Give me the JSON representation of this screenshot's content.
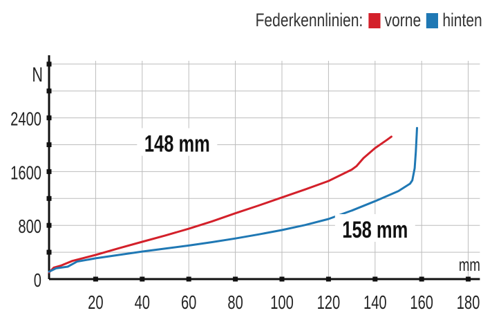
{
  "legend": {
    "title": "Federkennlinien:",
    "items": [
      {
        "label": "vorne",
        "color": "#d3202a"
      },
      {
        "label": "hinten",
        "color": "#1f78b4"
      }
    ]
  },
  "chart_data": {
    "type": "line",
    "xlabel": "mm",
    "ylabel": "N",
    "xlim": [
      0,
      185
    ],
    "ylim": [
      0,
      3250
    ],
    "x_ticks": [
      "20",
      "40",
      "60",
      "80",
      "100",
      "120",
      "140",
      "160",
      "180"
    ],
    "y_ticks": [
      "0",
      "800",
      "1600",
      "2400"
    ],
    "grid": true,
    "series": [
      {
        "name": "vorne",
        "color": "#d3202a",
        "points": [
          [
            0,
            100
          ],
          [
            2,
            170
          ],
          [
            5,
            200
          ],
          [
            10,
            270
          ],
          [
            20,
            360
          ],
          [
            30,
            460
          ],
          [
            40,
            555
          ],
          [
            50,
            650
          ],
          [
            60,
            750
          ],
          [
            70,
            860
          ],
          [
            80,
            980
          ],
          [
            90,
            1095
          ],
          [
            100,
            1215
          ],
          [
            110,
            1335
          ],
          [
            120,
            1460
          ],
          [
            130,
            1630
          ],
          [
            132,
            1680
          ],
          [
            135,
            1800
          ],
          [
            140,
            1950
          ],
          [
            145,
            2070
          ],
          [
            147,
            2120
          ]
        ]
      },
      {
        "name": "hinten",
        "color": "#1f78b4",
        "points": [
          [
            0,
            110
          ],
          [
            3,
            160
          ],
          [
            8,
            185
          ],
          [
            12,
            260
          ],
          [
            20,
            310
          ],
          [
            30,
            360
          ],
          [
            40,
            410
          ],
          [
            50,
            455
          ],
          [
            60,
            500
          ],
          [
            70,
            550
          ],
          [
            80,
            605
          ],
          [
            90,
            665
          ],
          [
            100,
            730
          ],
          [
            110,
            805
          ],
          [
            120,
            895
          ],
          [
            130,
            1020
          ],
          [
            140,
            1160
          ],
          [
            150,
            1310
          ],
          [
            155,
            1420
          ],
          [
            156,
            1470
          ],
          [
            157,
            1650
          ],
          [
            157.5,
            1900
          ],
          [
            158,
            2250
          ]
        ]
      }
    ],
    "annotations": [
      {
        "text": "148 mm",
        "x": 55,
        "y": 2000
      },
      {
        "text": "158 mm",
        "x": 140,
        "y": 720
      }
    ]
  }
}
